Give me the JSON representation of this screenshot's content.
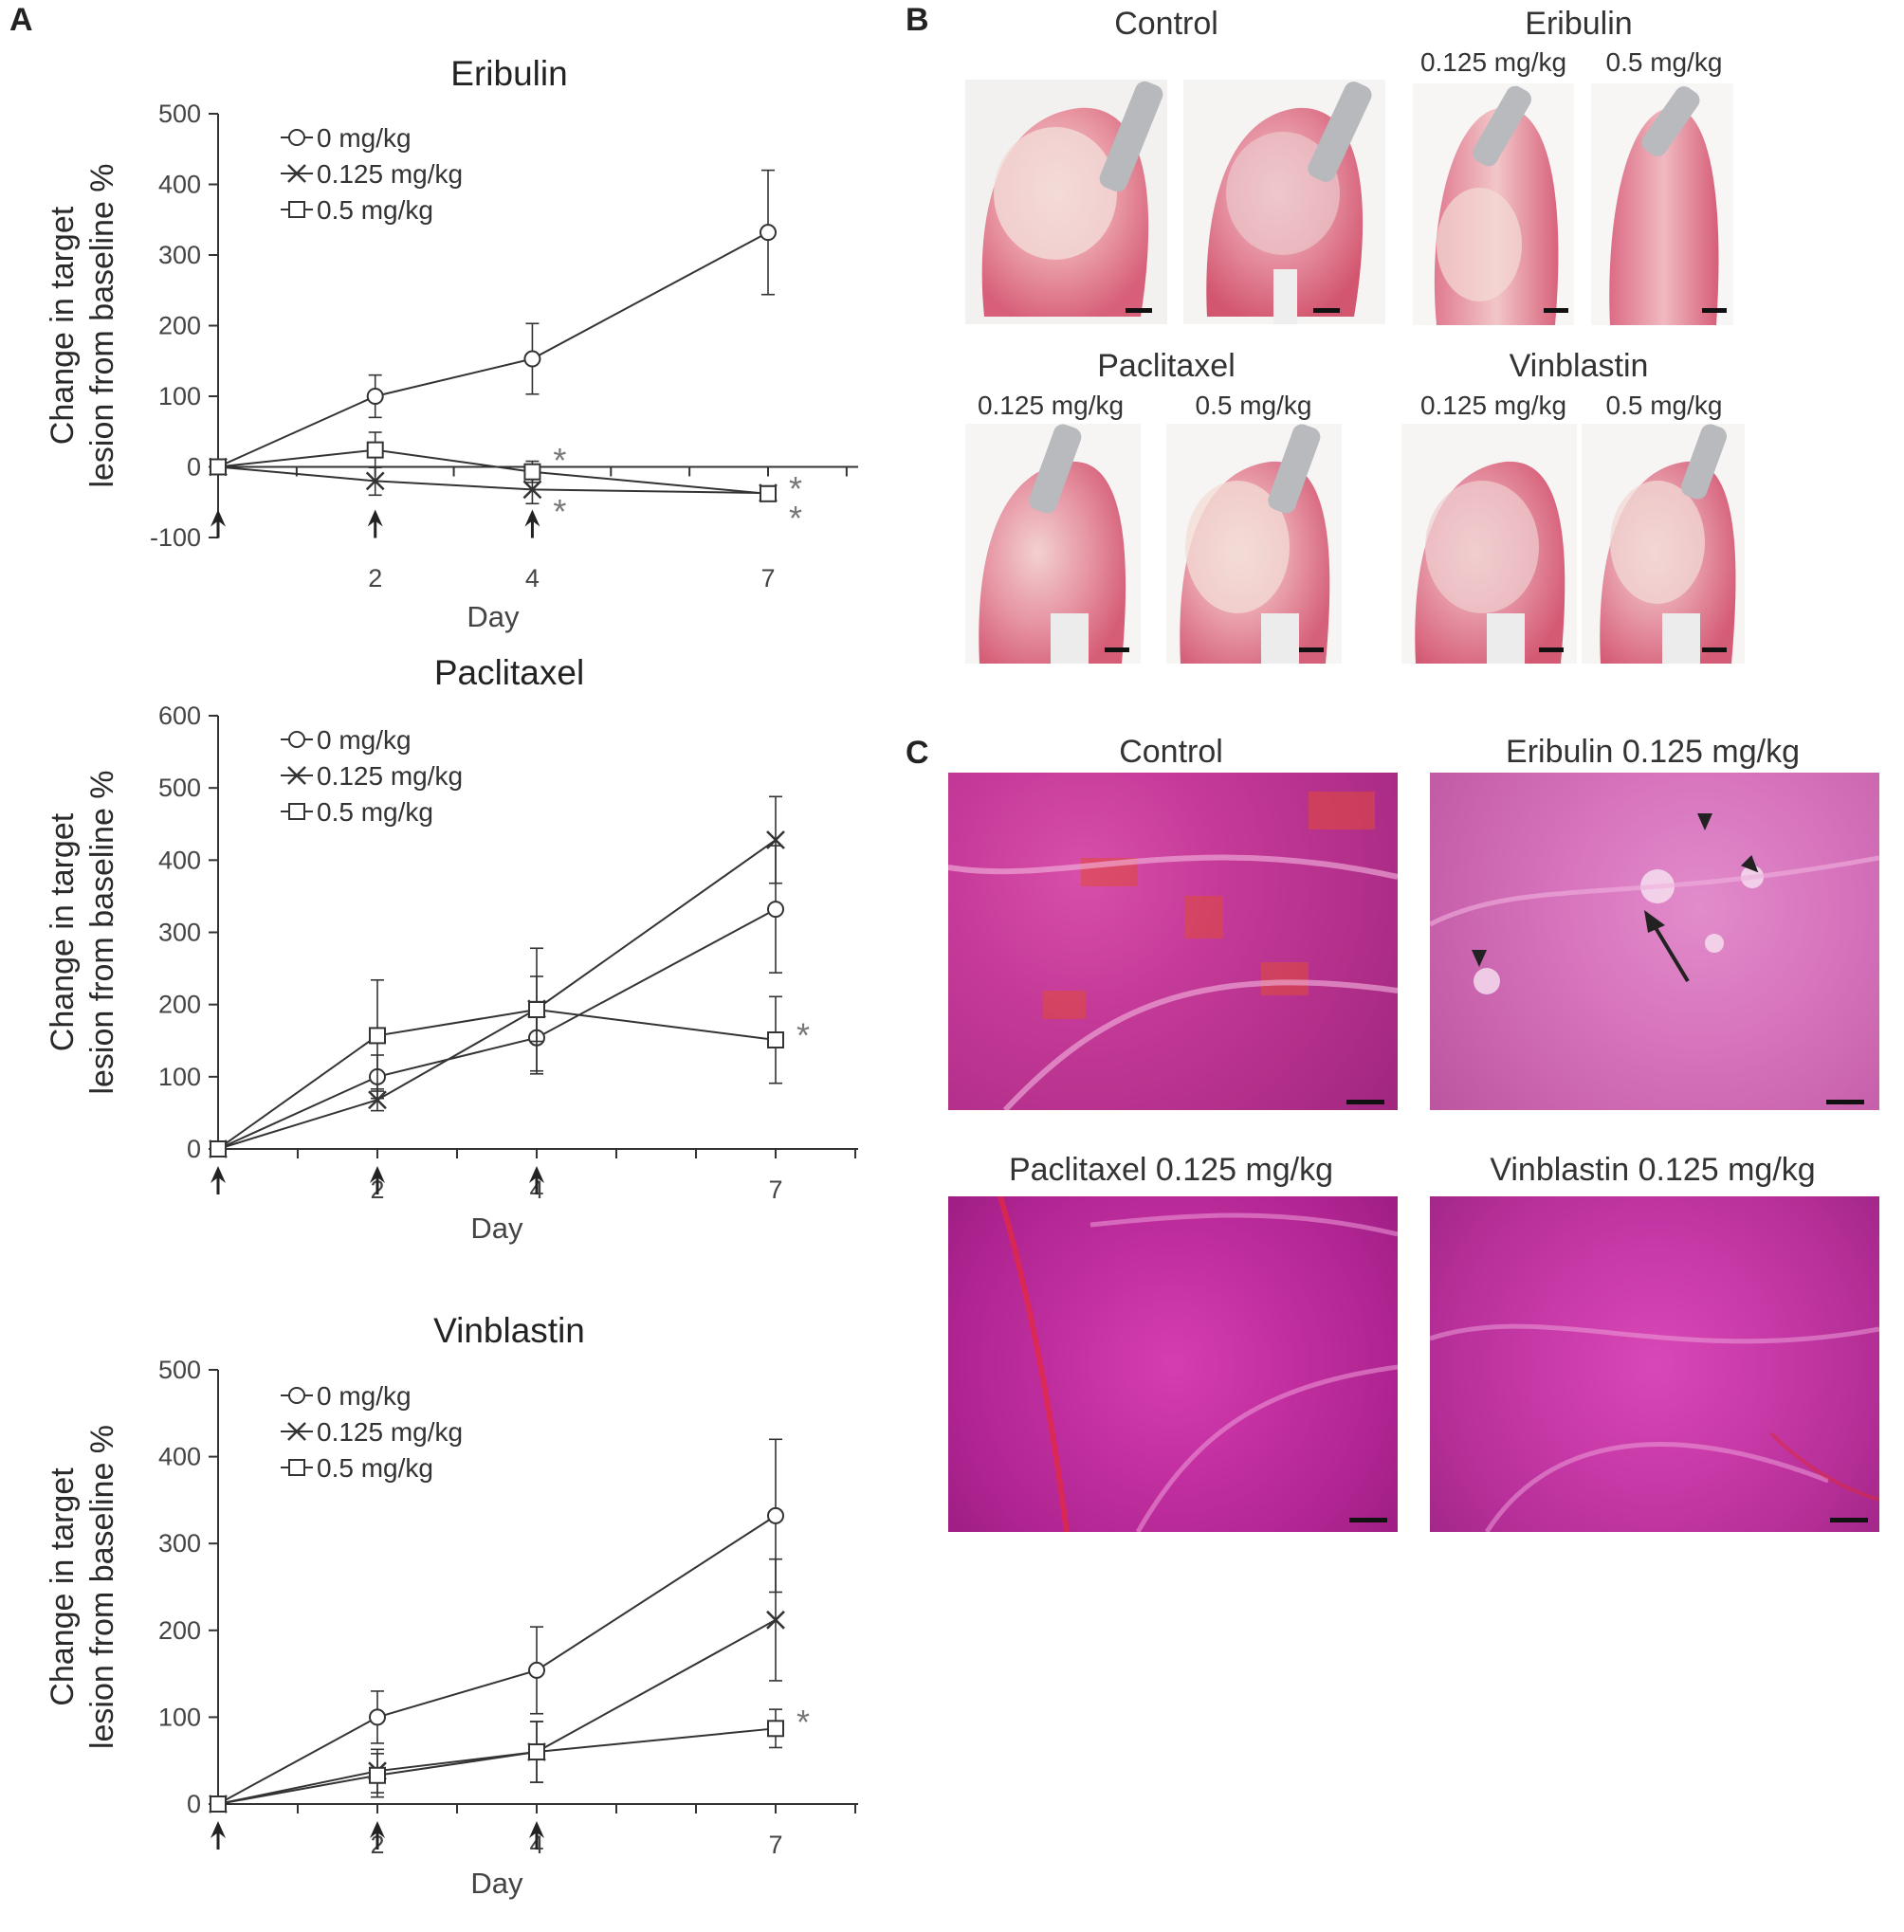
{
  "panels": {
    "a": "A",
    "b": "B",
    "c": "C"
  },
  "chart_data": [
    {
      "type": "line",
      "title": "Eribulin",
      "xlabel": "Day",
      "ylabel": "Change in target lesion from baseline %",
      "x": [
        0,
        2,
        4,
        7
      ],
      "xticks": [
        2,
        4,
        7
      ],
      "yticks": [
        -100,
        0,
        100,
        200,
        300,
        400,
        500
      ],
      "ylim": [
        -100,
        500
      ],
      "dosing_arrows_days": [
        0,
        2,
        4
      ],
      "series": [
        {
          "name": "0 mg/kg",
          "marker": "circle",
          "values": [
            0,
            100,
            153,
            332
          ],
          "errors": [
            0,
            30,
            50,
            88
          ]
        },
        {
          "name": "0.125 mg/kg",
          "marker": "x",
          "values": [
            0,
            -20,
            -32,
            -37
          ],
          "errors": [
            0,
            20,
            20,
            10
          ]
        },
        {
          "name": "0.5 mg/kg",
          "marker": "square",
          "values": [
            0,
            24,
            -7,
            -38
          ],
          "errors": [
            0,
            25,
            15,
            10
          ]
        }
      ],
      "annotations": [
        {
          "text": "*",
          "day": 4,
          "y": 22
        },
        {
          "text": "*",
          "day": 4,
          "y": -50
        },
        {
          "text": "*",
          "day": 7,
          "y": -18
        },
        {
          "text": "*",
          "day": 7,
          "y": -60
        }
      ],
      "legend": "top-left"
    },
    {
      "type": "line",
      "title": "Paclitaxel",
      "xlabel": "Day",
      "ylabel": "Change in target lesion from baseline %",
      "x": [
        0,
        2,
        4,
        7
      ],
      "xticks": [
        2,
        4,
        7
      ],
      "yticks": [
        0,
        100,
        200,
        300,
        400,
        500,
        600
      ],
      "ylim": [
        0,
        600
      ],
      "dosing_arrows_days": [
        0,
        2,
        4
      ],
      "series": [
        {
          "name": "0 mg/kg",
          "marker": "circle",
          "values": [
            0,
            100,
            154,
            332
          ],
          "errors": [
            0,
            30,
            50,
            88
          ]
        },
        {
          "name": "0.125 mg/kg",
          "marker": "x",
          "values": [
            0,
            68,
            194,
            428
          ],
          "errors": [
            0,
            15,
            45,
            60
          ]
        },
        {
          "name": "0.5 mg/kg",
          "marker": "square",
          "values": [
            0,
            157,
            193,
            151
          ],
          "errors": [
            0,
            77,
            85,
            60
          ]
        }
      ],
      "annotations": [
        {
          "text": "*",
          "day": 7,
          "y": 170
        }
      ],
      "legend": "top-left"
    },
    {
      "type": "line",
      "title": "Vinblastin",
      "xlabel": "Day",
      "ylabel": "Change in target lesion from baseline %",
      "x": [
        0,
        2,
        4,
        7
      ],
      "xticks": [
        2,
        4,
        7
      ],
      "yticks": [
        0,
        100,
        200,
        300,
        400,
        500
      ],
      "ylim": [
        0,
        500
      ],
      "dosing_arrows_days": [
        0,
        2,
        4
      ],
      "series": [
        {
          "name": "0 mg/kg",
          "marker": "circle",
          "values": [
            0,
            100,
            154,
            332
          ],
          "errors": [
            0,
            30,
            50,
            88
          ]
        },
        {
          "name": "0.125 mg/kg",
          "marker": "x",
          "values": [
            0,
            38,
            60,
            212
          ],
          "errors": [
            0,
            25,
            35,
            70
          ]
        },
        {
          "name": "0.5 mg/kg",
          "marker": "square",
          "values": [
            0,
            33,
            60,
            87
          ],
          "errors": [
            0,
            25,
            35,
            22
          ]
        }
      ],
      "annotations": [
        {
          "text": "*",
          "day": 7,
          "y": 105
        }
      ],
      "legend": "top-left"
    }
  ],
  "panel_b": {
    "control": {
      "title": "Control"
    },
    "eribulin": {
      "title": "Eribulin",
      "dose1": "0.125 mg/kg",
      "dose2": "0.5 mg/kg"
    },
    "paclitaxel": {
      "title": "Paclitaxel",
      "dose1": "0.125 mg/kg",
      "dose2": "0.5 mg/kg"
    },
    "vinblastin": {
      "title": "Vinblastin",
      "dose1": "0.125 mg/kg",
      "dose2": "0.5 mg/kg"
    }
  },
  "panel_c": {
    "control": "Control",
    "eribulin": "Eribulin 0.125 mg/kg",
    "paclitaxel": "Paclitaxel 0.125 mg/kg",
    "vinblastin": "Vinblastin 0.125 mg/kg"
  }
}
